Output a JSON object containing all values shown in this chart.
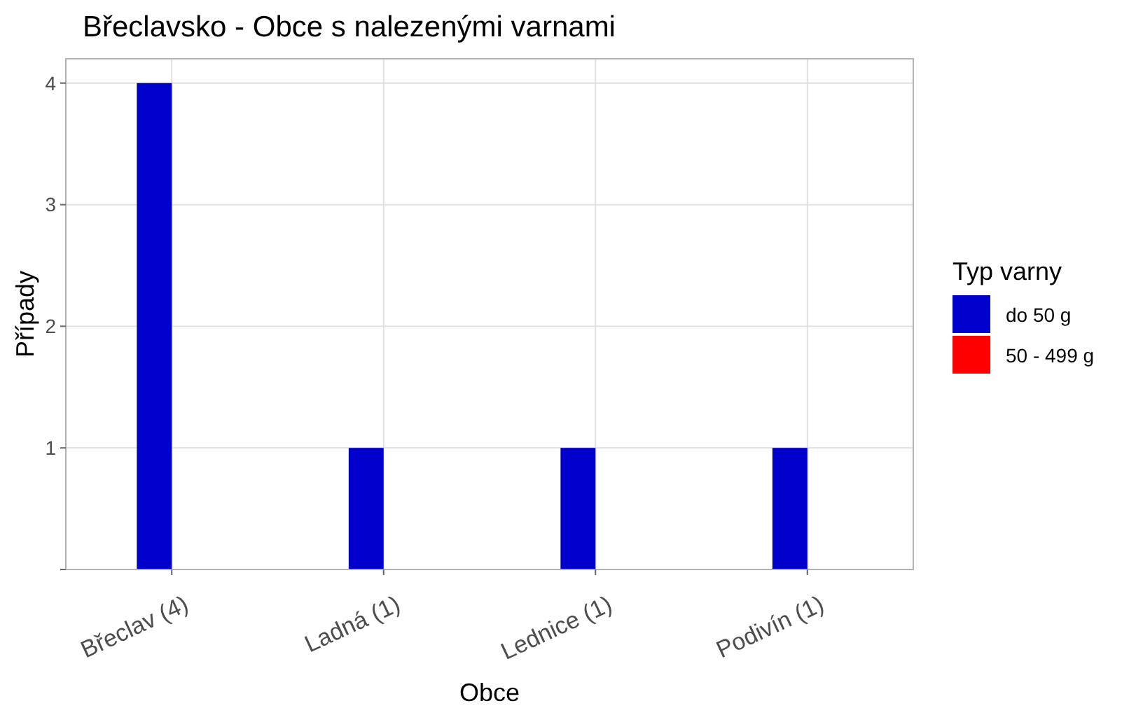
{
  "chart_data": {
    "type": "bar",
    "title": "Břeclavsko - Obce s nalezenými varnami",
    "xlabel": "Obce",
    "ylabel": "Případy",
    "legend_title": "Typ varny",
    "categories": [
      "Břeclav (4)",
      "Ladná (1)",
      "Lednice (1)",
      "Podivín (1)"
    ],
    "series": [
      {
        "name": "do 50 g",
        "color": "#0000cd",
        "values": [
          4,
          1,
          1,
          1
        ]
      },
      {
        "name": "50 - 499 g",
        "color": "#ff0000",
        "values": [
          null,
          null,
          null,
          null
        ]
      }
    ],
    "ylim": [
      0,
      4.2
    ],
    "yticks": [
      {
        "value": 0,
        "label": null
      },
      1,
      2,
      3,
      4
    ],
    "grid": true,
    "legend": "right"
  }
}
